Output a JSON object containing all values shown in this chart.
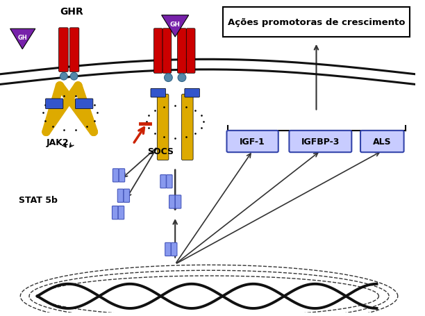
{
  "title_box": "Ações promotoras de crescimento",
  "label_GHR": "GHR",
  "label_GH_left": "GH",
  "label_GH_top": "GH",
  "label_JAK2": "JAK2",
  "label_SOCS": "SOCS",
  "label_STAT5b": "STAT 5b",
  "label_IGF1": "IGF-1",
  "label_IGFBP3": "IGFBP-3",
  "label_ALS": "ALS",
  "bg_color": "#ffffff",
  "membrane_color": "#111111",
  "red": "#cc0000",
  "yellow": "#ddaa00",
  "blue": "#3355cc",
  "teal": "#5588aa",
  "purple": "#7722aa",
  "stat_color": "#8899ee",
  "arrow_color": "#333333",
  "socs_color": "#cc2200",
  "box_fill": "#c8ccff",
  "box_edge": "#3344aa",
  "dna_color": "#111111"
}
